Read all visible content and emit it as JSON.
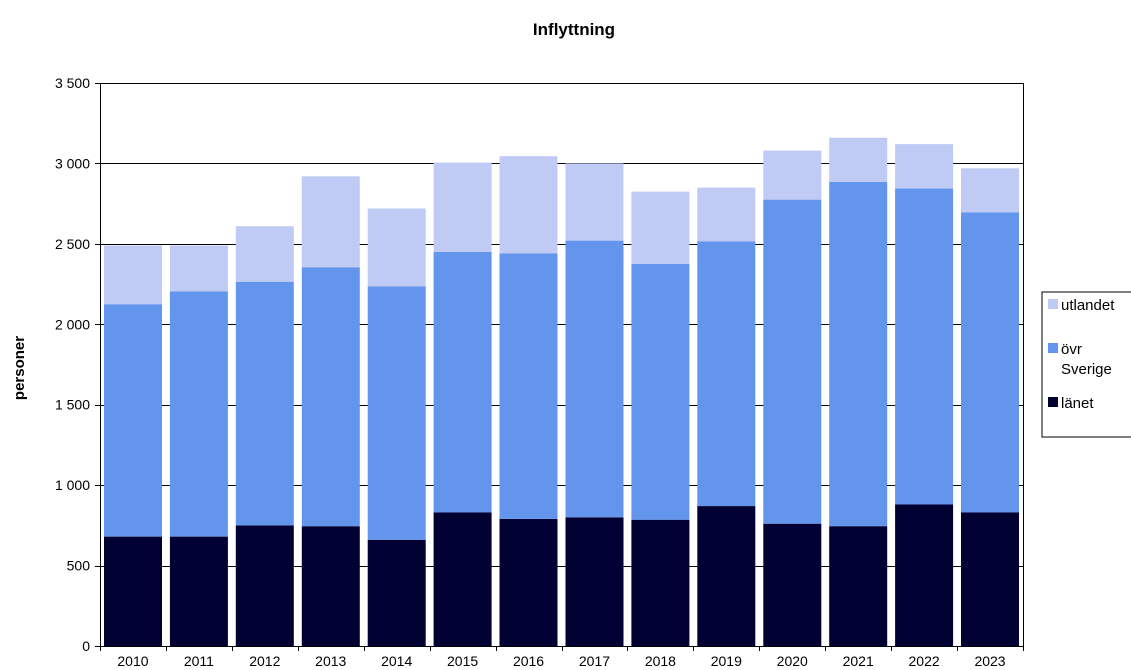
{
  "chart_data": {
    "type": "bar",
    "stacked": true,
    "title": "Inflyttning",
    "xlabel": "",
    "ylabel": "personer",
    "ylim": [
      0,
      3500
    ],
    "yticks": [
      0,
      500,
      1000,
      1500,
      2000,
      2500,
      3000,
      3500
    ],
    "ytick_labels": [
      "0",
      "500",
      "1 000",
      "1 500",
      "2 000",
      "2 500",
      "3 000",
      "3 500"
    ],
    "grid": true,
    "legend_position": "right",
    "categories": [
      "2010",
      "2011",
      "2012",
      "2013",
      "2014",
      "2015",
      "2016",
      "2017",
      "2018",
      "2019",
      "2020",
      "2021",
      "2022",
      "2023"
    ],
    "series": [
      {
        "name": "länet",
        "color": "#000033",
        "values": [
          680,
          680,
          750,
          745,
          660,
          830,
          790,
          800,
          785,
          870,
          760,
          745,
          880,
          830
        ]
      },
      {
        "name": "övr Sverige",
        "color": "#6495ED",
        "values": [
          1445,
          1525,
          1515,
          1610,
          1575,
          1620,
          1650,
          1720,
          1590,
          1645,
          2015,
          2140,
          1965,
          1865
        ]
      },
      {
        "name": "utlandet",
        "color": "#BFCBF5",
        "values": [
          365,
          285,
          345,
          565,
          485,
          555,
          605,
          480,
          450,
          335,
          305,
          275,
          275,
          275
        ]
      }
    ],
    "legend_order": [
      "utlandet",
      "övr Sverige",
      "länet"
    ]
  }
}
